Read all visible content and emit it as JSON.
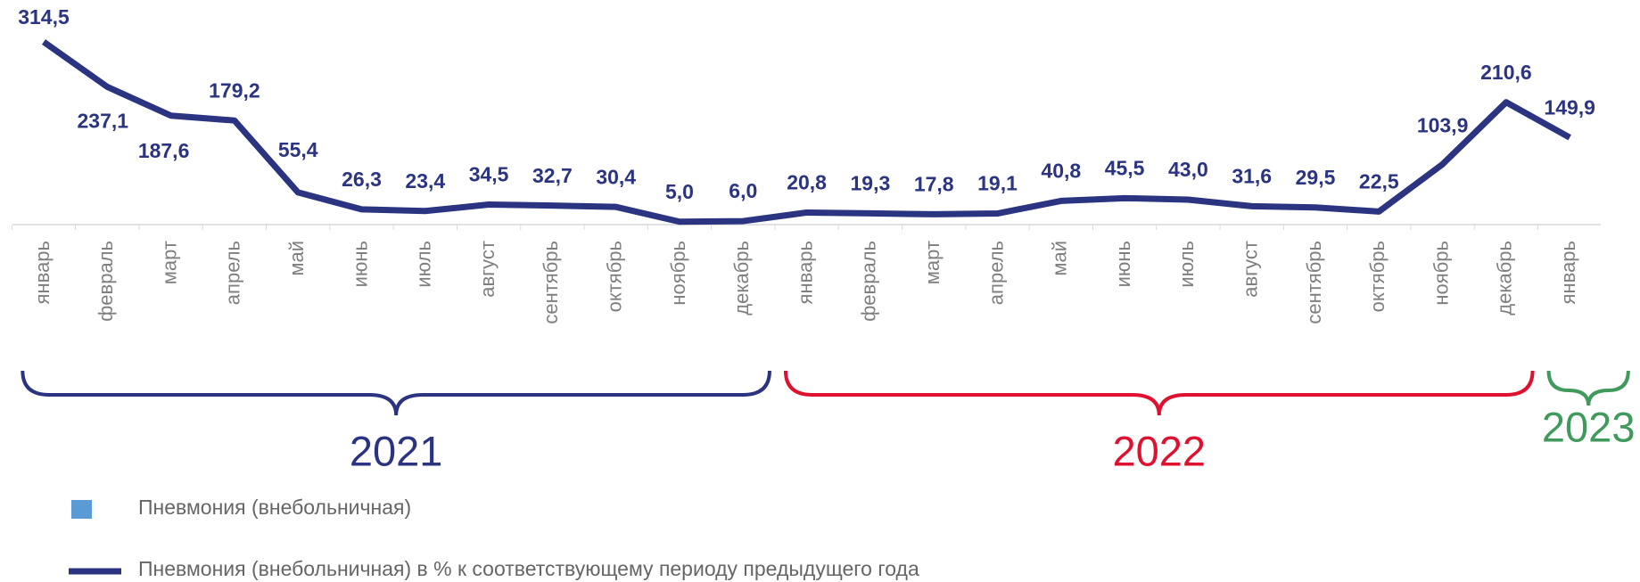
{
  "chart_data": {
    "type": "line",
    "categories": [
      "январь",
      "февраль",
      "март",
      "апрель",
      "май",
      "июнь",
      "июль",
      "август",
      "сентябрь",
      "октябрь",
      "ноябрь",
      "декабрь",
      "январь",
      "февраль",
      "март",
      "апрель",
      "май",
      "июнь",
      "июль",
      "август",
      "сентябрь",
      "октябрь",
      "ноябрь",
      "декабрь",
      "январь"
    ],
    "series": [
      {
        "name": "Пневмония (внебольничная) в % к соответствующему периоду предыдущего года",
        "color": "#2b3480",
        "values": [
          314.5,
          237.1,
          187.6,
          179.2,
          55.4,
          26.3,
          23.4,
          34.5,
          32.7,
          30.4,
          5.0,
          6.0,
          20.8,
          19.3,
          17.8,
          19.1,
          40.8,
          45.5,
          43.0,
          31.6,
          29.5,
          22.5,
          103.9,
          210.6,
          149.9
        ],
        "value_labels": [
          "314,5",
          "237,1",
          "187,6",
          "179,2",
          "55,4",
          "26,3",
          "23,4",
          "34,5",
          "32,7",
          "30,4",
          "5,0",
          "6,0",
          "20,8",
          "19,3",
          "17,8",
          "19,1",
          "40,8",
          "45,5",
          "43,0",
          "31,6",
          "29,5",
          "22,5",
          "103,9",
          "210,6",
          "149,9"
        ]
      }
    ],
    "extra_legend": [
      {
        "name": "Пневмония (внебольничная)",
        "color": "#5b9bd5"
      }
    ],
    "groups": [
      {
        "name": "2021",
        "color": "#2b3480",
        "count": 12
      },
      {
        "name": "2022",
        "color": "#e0102f",
        "count": 12
      },
      {
        "name": "2023",
        "color": "#3f9a5c",
        "count": 1
      }
    ]
  }
}
